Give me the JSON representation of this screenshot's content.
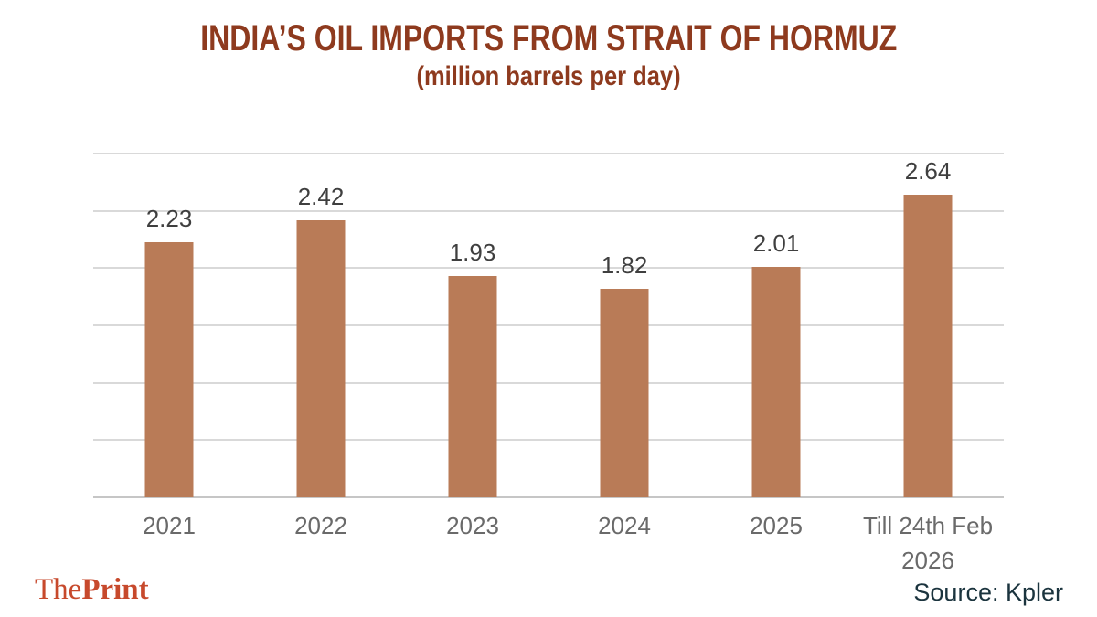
{
  "header": {
    "title": "INDIA’S OIL IMPORTS FROM STRAIT OF HORMUZ",
    "subtitle": "(million barrels per day)"
  },
  "chart_data": {
    "type": "bar",
    "title": "INDIA’S OIL IMPORTS FROM STRAIT OF HORMUZ",
    "subtitle": "(million barrels per day)",
    "categories": [
      "2021",
      "2022",
      "2023",
      "2024",
      "2025",
      "Till 24th Feb 2026"
    ],
    "values": [
      2.23,
      2.42,
      1.93,
      1.82,
      2.01,
      2.64
    ],
    "data_labels": [
      "2.23",
      "2.42",
      "1.93",
      "1.82",
      "2.01",
      "2.64"
    ],
    "xlabel": "",
    "ylabel": "",
    "ylim": [
      0,
      3
    ],
    "gridline_step": 0.5,
    "grid": true,
    "legend": "none",
    "bar_color": "#B97B57"
  },
  "footer": {
    "logo": {
      "part1": "The",
      "part2": "Print"
    },
    "source": "Source: Kpler"
  },
  "colors": {
    "title": "#8E3A1E",
    "bar": "#B97B57",
    "value_label": "#3F3F3F",
    "axis_label": "#6A6A6A",
    "gridline": "#D9D9D9",
    "axis_line": "#C6C6C6",
    "logo": "#C7492C",
    "source": "#1B343E"
  }
}
